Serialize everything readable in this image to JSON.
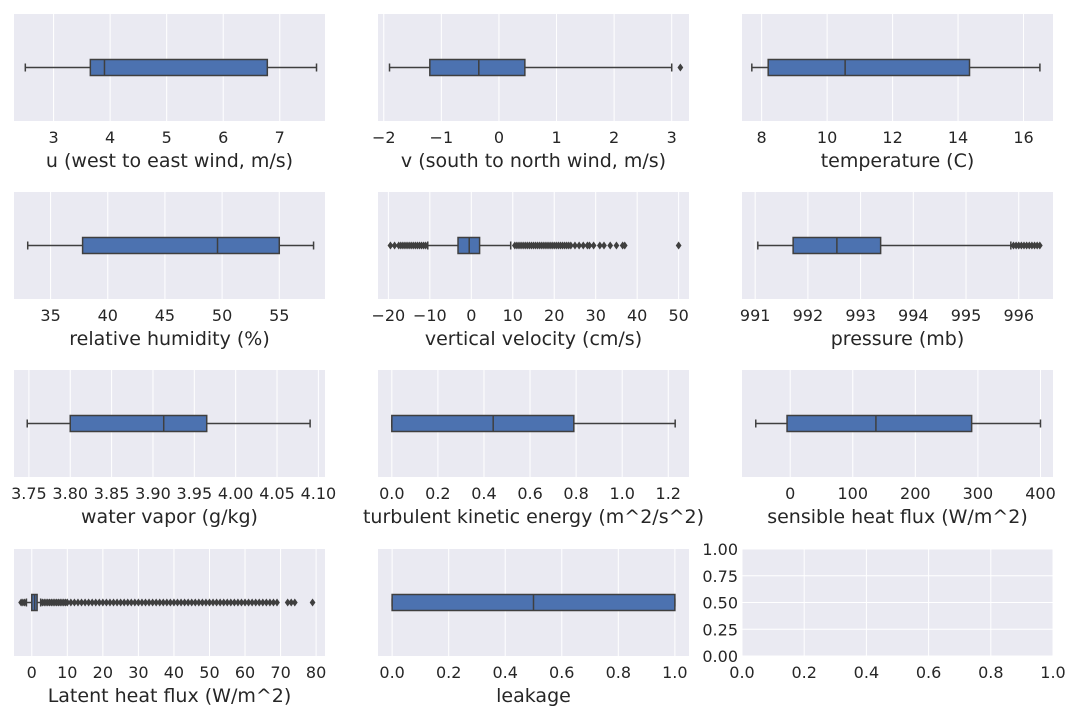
{
  "colors": {
    "plot_background": "#EAEAF2",
    "grid": "#FFFFFF",
    "box_fill": "#4C72B0",
    "line": "#3F3F3F",
    "text": "#262626"
  },
  "chart_data": [
    {
      "type": "box",
      "xlabel": "u (west to east wind, m/s)",
      "xlim": [
        2.3,
        7.8
      ],
      "xticks": [
        3,
        4,
        5,
        6,
        7
      ],
      "tick_labels": [
        "3",
        "4",
        "5",
        "6",
        "7"
      ],
      "whisker_low": 2.5,
      "q1": 3.65,
      "median": 3.9,
      "q3": 6.78,
      "whisker_high": 7.65,
      "outliers": []
    },
    {
      "type": "box",
      "xlabel": "v (south to north wind, m/s)",
      "xlim": [
        -2.1,
        3.3
      ],
      "xticks": [
        -2,
        -1,
        0,
        1,
        2,
        3
      ],
      "tick_labels": [
        "−2",
        "−1",
        "0",
        "1",
        "2",
        "3"
      ],
      "whisker_low": -1.9,
      "q1": -1.2,
      "median": -0.35,
      "q3": 0.45,
      "whisker_high": 3.0,
      "outliers": [
        3.15
      ]
    },
    {
      "type": "box",
      "xlabel": "temperature (C)",
      "xlim": [
        7.4,
        16.9
      ],
      "xticks": [
        8,
        10,
        12,
        14,
        16
      ],
      "tick_labels": [
        "8",
        "10",
        "12",
        "14",
        "16"
      ],
      "whisker_low": 7.7,
      "q1": 8.2,
      "median": 10.55,
      "q3": 14.35,
      "whisker_high": 16.5,
      "outliers": []
    },
    {
      "type": "box",
      "xlabel": "relative humidity (%)",
      "xlim": [
        31.8,
        59.0
      ],
      "xticks": [
        35,
        40,
        45,
        50,
        55
      ],
      "tick_labels": [
        "35",
        "40",
        "45",
        "50",
        "55"
      ],
      "whisker_low": 33.0,
      "q1": 37.8,
      "median": 49.6,
      "q3": 55.0,
      "whisker_high": 58.0,
      "outliers": []
    },
    {
      "type": "box",
      "xlabel": "vertical velocity (cm/s)",
      "xlim": [
        -22.5,
        52.5
      ],
      "xticks": [
        -20,
        -10,
        0,
        10,
        20,
        30,
        40,
        50
      ],
      "tick_labels": [
        "−20",
        "−10",
        "0",
        "10",
        "20",
        "30",
        "40",
        "50"
      ],
      "whisker_low": -10.5,
      "q1": -3.2,
      "median": -0.5,
      "q3": 2.0,
      "whisker_high": 9.5,
      "outliers": [
        -19.5,
        -18.5,
        -17.5,
        -17,
        -16.5,
        -16,
        -15.5,
        -15,
        -14.5,
        -14,
        -13.5,
        -13,
        -12.5,
        -12,
        -11.5,
        -11,
        10.5,
        11,
        11.5,
        12,
        12.5,
        13,
        13.5,
        14,
        14.5,
        15,
        15.5,
        16,
        16.5,
        17,
        17.5,
        18,
        18.5,
        19,
        19.5,
        20,
        20.5,
        21,
        21.5,
        22,
        22.5,
        23,
        23.5,
        24,
        25,
        26,
        27,
        28,
        28.5,
        29.5,
        31,
        32,
        33.5,
        35,
        36.5,
        37,
        50
      ]
    },
    {
      "type": "box",
      "xlabel": "pressure (mb)",
      "xlim": [
        990.75,
        996.65
      ],
      "xticks": [
        991,
        992,
        993,
        994,
        995,
        996
      ],
      "tick_labels": [
        "991",
        "992",
        "993",
        "994",
        "995",
        "996"
      ],
      "whisker_low": 991.05,
      "q1": 991.72,
      "median": 992.55,
      "q3": 993.38,
      "whisker_high": 995.85,
      "outliers": [
        995.9,
        995.95,
        996.0,
        996.05,
        996.1,
        996.15,
        996.2,
        996.25,
        996.3,
        996.35,
        996.4
      ]
    },
    {
      "type": "box",
      "xlabel": "water vapor  (g/kg)",
      "xlim": [
        3.732,
        4.108
      ],
      "xticks": [
        3.75,
        3.8,
        3.85,
        3.9,
        3.95,
        4.0,
        4.05,
        4.1
      ],
      "tick_labels": [
        "3.75",
        "3.80",
        "3.85",
        "3.90",
        "3.95",
        "4.00",
        "4.05",
        "4.10"
      ],
      "whisker_low": 3.748,
      "q1": 3.8,
      "median": 3.913,
      "q3": 3.965,
      "whisker_high": 4.09,
      "outliers": []
    },
    {
      "type": "box",
      "xlabel": "turbulent kinetic energy (m^2/s^2)",
      "xlim": [
        -0.06,
        1.29
      ],
      "xticks": [
        0.0,
        0.2,
        0.4,
        0.6,
        0.8,
        1.0,
        1.2
      ],
      "tick_labels": [
        "0.0",
        "0.2",
        "0.4",
        "0.6",
        "0.8",
        "1.0",
        "1.2"
      ],
      "whisker_low": 0.0,
      "q1": 0.0,
      "median": 0.44,
      "q3": 0.79,
      "whisker_high": 1.23,
      "outliers": []
    },
    {
      "type": "box",
      "xlabel": "sensible heat flux (W/m^2)",
      "xlim": [
        -77,
        420
      ],
      "xticks": [
        0,
        100,
        200,
        300,
        400
      ],
      "tick_labels": [
        "0",
        "100",
        "200",
        "300",
        "400"
      ],
      "whisker_low": -55,
      "q1": -5,
      "median": 137,
      "q3": 290,
      "whisker_high": 400,
      "outliers": []
    },
    {
      "type": "box",
      "xlabel": "Latent heat flux (W/m^2)",
      "xlim": [
        -5,
        82.5
      ],
      "xticks": [
        0,
        10,
        20,
        30,
        40,
        50,
        60,
        70,
        80
      ],
      "tick_labels": [
        "0",
        "10",
        "20",
        "30",
        "40",
        "50",
        "60",
        "70",
        "80"
      ],
      "whisker_low": -1.5,
      "q1": 0.0,
      "median": 0.8,
      "q3": 1.5,
      "whisker_high": 2.5,
      "outliers": [
        -3,
        -2.5,
        -2,
        3,
        3.5,
        4,
        4.5,
        5,
        5.5,
        6,
        6.5,
        7,
        7.5,
        8,
        8.5,
        9,
        9.5,
        10,
        11,
        12,
        13,
        14,
        15,
        16,
        17,
        18,
        19,
        20,
        21,
        22,
        23,
        24,
        25,
        26,
        27,
        28,
        29,
        30,
        31,
        32,
        33,
        34,
        35,
        36,
        37,
        38,
        39,
        40,
        41,
        42,
        43,
        44,
        45,
        46,
        47,
        48,
        49,
        50,
        51,
        52,
        53,
        54,
        55,
        56,
        57,
        58,
        59,
        60,
        61,
        62,
        63,
        64,
        65,
        66,
        67,
        68,
        69,
        72,
        73,
        74,
        79
      ]
    },
    {
      "type": "box",
      "xlabel": "leakage",
      "xlim": [
        -0.05,
        1.05
      ],
      "xticks": [
        0.0,
        0.2,
        0.4,
        0.6,
        0.8,
        1.0
      ],
      "tick_labels": [
        "0.0",
        "0.2",
        "0.4",
        "0.6",
        "0.8",
        "1.0"
      ],
      "whisker_low": 0.0,
      "q1": 0.0,
      "median": 0.5,
      "q3": 1.0,
      "whisker_high": 1.0,
      "outliers": []
    },
    {
      "type": "empty",
      "xlim": [
        0,
        1
      ],
      "ylim": [
        0,
        1
      ],
      "xticks": [
        0.0,
        0.2,
        0.4,
        0.6,
        0.8,
        1.0
      ],
      "tick_labels": [
        "0.0",
        "0.2",
        "0.4",
        "0.6",
        "0.8",
        "1.0"
      ],
      "yticks": [
        0.0,
        0.25,
        0.5,
        0.75,
        1.0
      ],
      "ytick_labels": [
        "0.00",
        "0.25",
        "0.50",
        "0.75",
        "1.00"
      ]
    }
  ]
}
